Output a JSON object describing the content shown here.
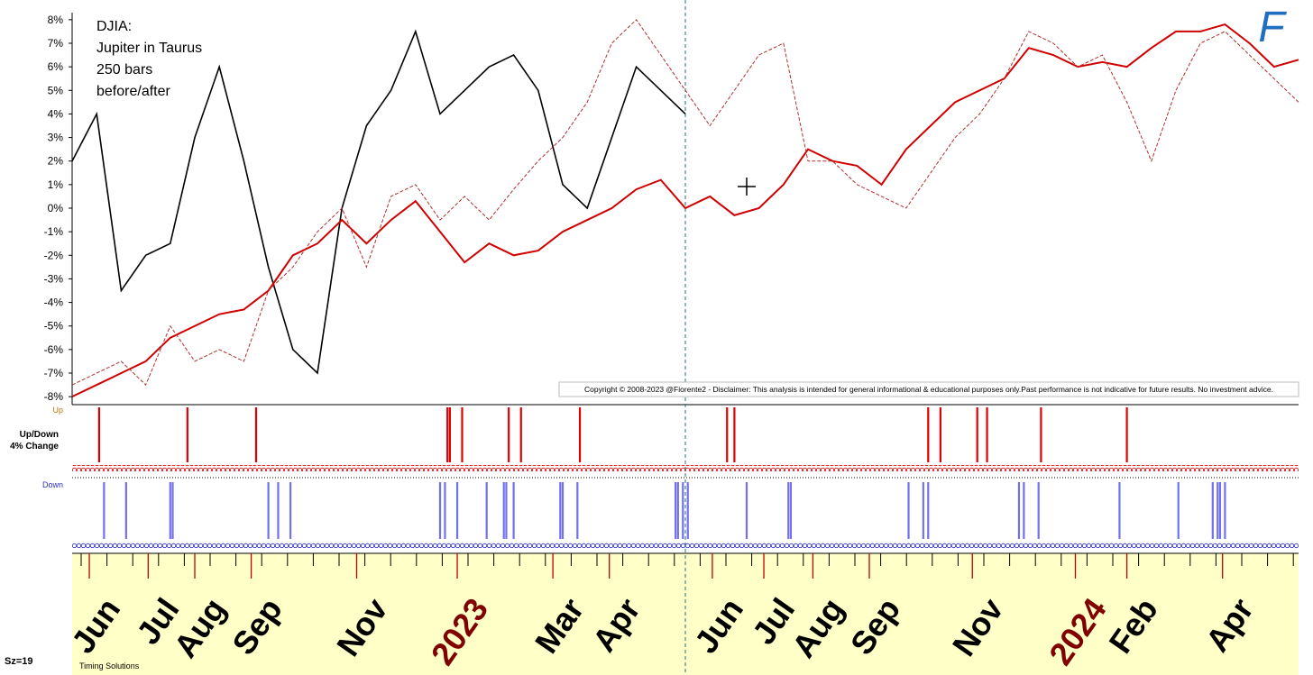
{
  "chart_data": {
    "type": "line",
    "annotation": [
      "DJIA:",
      "Jupiter in Taurus",
      "250 bars",
      "before/after"
    ],
    "copyright": "Copyright © 2008-2023 @Fiorente2 -  Disclaimer: This analysis is intended for general informational & educational purposes only.Past performance is not indicative for future results. No investment advice.",
    "panel_label": [
      "Up/Down",
      "4% Change"
    ],
    "up_label": "Up",
    "down_label": "Down",
    "footer_left": "Sz=19",
    "footer_brand": "Timing Solutions",
    "xlim": [
      0,
      500
    ],
    "xticks": [
      {
        "value": 7,
        "label": "Jun"
      },
      {
        "value": 31,
        "label": "Jul"
      },
      {
        "value": 50,
        "label": "Aug"
      },
      {
        "value": 73,
        "label": "Sep"
      },
      {
        "value": 116,
        "label": "Nov"
      },
      {
        "value": 157,
        "label": "2023"
      },
      {
        "value": 196,
        "label": "Mar"
      },
      {
        "value": 219,
        "label": "Apr"
      },
      {
        "value": 261,
        "label": "Jun"
      },
      {
        "value": 282,
        "label": "Jul"
      },
      {
        "value": 302,
        "label": "Aug"
      },
      {
        "value": 325,
        "label": "Sep"
      },
      {
        "value": 367,
        "label": "Nov"
      },
      {
        "value": 409,
        "label": "2024"
      },
      {
        "value": 430,
        "label": "Feb"
      },
      {
        "value": 469,
        "label": "Apr"
      }
    ],
    "ylim": [
      -8.3,
      8.3
    ],
    "yticks": [
      {
        "value": -8,
        "label": "-8%"
      },
      {
        "value": -7,
        "label": "-7%"
      },
      {
        "value": -6,
        "label": "-6%"
      },
      {
        "value": -5,
        "label": "-5%"
      },
      {
        "value": -4,
        "label": "-4%"
      },
      {
        "value": -3,
        "label": "-3%"
      },
      {
        "value": -2,
        "label": "-2%"
      },
      {
        "value": -1,
        "label": "-1%"
      },
      {
        "value": 0,
        "label": "0%"
      },
      {
        "value": 1,
        "label": "1%"
      },
      {
        "value": 2,
        "label": "2%"
      },
      {
        "value": 3,
        "label": "3%"
      },
      {
        "value": 4,
        "label": "4%"
      },
      {
        "value": 5,
        "label": "5%"
      },
      {
        "value": 6,
        "label": "6%"
      },
      {
        "value": 7,
        "label": "7%"
      },
      {
        "value": 8,
        "label": "8%"
      }
    ],
    "series": [
      {
        "color": "#000000",
        "dash": false,
        "width": 1.6,
        "x": [
          0,
          10,
          20,
          30,
          40,
          50,
          60,
          70,
          80,
          90,
          100,
          110,
          120,
          130,
          140,
          150,
          160,
          170,
          180,
          190,
          200,
          210,
          220,
          230,
          240,
          250
        ],
        "values": [
          2,
          4,
          -3.5,
          -2,
          -1.5,
          3,
          6,
          2,
          -2.5,
          -6,
          -7,
          0,
          3.5,
          5,
          7.5,
          4,
          5,
          6,
          6.5,
          5,
          1,
          0,
          3,
          6,
          5,
          4
        ]
      },
      {
        "color": "#d00000",
        "dash": false,
        "width": 2,
        "x": [
          0,
          10,
          20,
          30,
          40,
          50,
          60,
          70,
          80,
          90,
          100,
          110,
          120,
          130,
          140,
          150,
          160,
          170,
          180,
          190,
          200,
          210,
          220,
          230,
          240,
          250,
          260,
          270,
          280,
          290,
          300,
          310,
          320,
          330,
          340,
          350,
          360,
          370,
          380,
          390,
          400,
          410,
          420,
          430,
          440,
          450,
          460,
          470,
          480,
          490,
          500
        ],
        "values": [
          -8,
          -7.5,
          -7,
          -6.5,
          -5.5,
          -5,
          -4.5,
          -4.3,
          -3.5,
          -2,
          -1.5,
          -0.5,
          -1.5,
          -0.5,
          0.3,
          -1,
          -2.3,
          -1.5,
          -2,
          -1.8,
          -1,
          -0.5,
          0,
          0.8,
          1.2,
          0,
          0.5,
          -0.3,
          0,
          1,
          2.5,
          2,
          1.8,
          1,
          2.5,
          3.5,
          4.5,
          5,
          5.5,
          6.8,
          6.5,
          6,
          6.2,
          6,
          6.8,
          7.5,
          7.5,
          7.8,
          7,
          6,
          6.3
        ]
      },
      {
        "color": "#b03030",
        "dash": true,
        "width": 1,
        "x": [
          0,
          10,
          20,
          30,
          40,
          50,
          60,
          70,
          80,
          90,
          100,
          110,
          120,
          130,
          140,
          150,
          160,
          170,
          180,
          190,
          200,
          210,
          220,
          230,
          240,
          250,
          260,
          270,
          280,
          290,
          300,
          310,
          320,
          330,
          340,
          350,
          360,
          370,
          380,
          390,
          400,
          410,
          420,
          430,
          440,
          450,
          460,
          470,
          480,
          490,
          500
        ],
        "values": [
          -7.5,
          -7,
          -6.5,
          -7.5,
          -5,
          -6.5,
          -6,
          -6.5,
          -3.5,
          -2.5,
          -1,
          0,
          -2.5,
          0.5,
          1,
          -0.5,
          0.5,
          -0.5,
          0.8,
          2,
          3,
          4.5,
          7,
          8,
          6.5,
          5,
          3.5,
          5,
          6.5,
          7,
          2,
          2,
          1,
          0.5,
          0,
          1.5,
          3,
          4,
          5.5,
          7.5,
          7,
          6,
          6.5,
          4.5,
          2,
          5,
          7,
          7.5,
          6.5,
          5.5,
          4.5
        ]
      }
    ],
    "up_events": [
      11,
      47,
      75,
      153,
      154,
      159,
      178,
      183,
      207,
      267,
      270,
      349,
      354,
      369,
      373,
      395,
      430
    ],
    "down_events": [
      13,
      22,
      40,
      41,
      80,
      84,
      89,
      150,
      152,
      157,
      169,
      176,
      177,
      180,
      199,
      200,
      206,
      246,
      247,
      249,
      251,
      275,
      292,
      293,
      341,
      347,
      349,
      386,
      388,
      394,
      427,
      451,
      465,
      467,
      468,
      470
    ],
    "up_color": "#e00000",
    "down_color": "#7070f0"
  }
}
